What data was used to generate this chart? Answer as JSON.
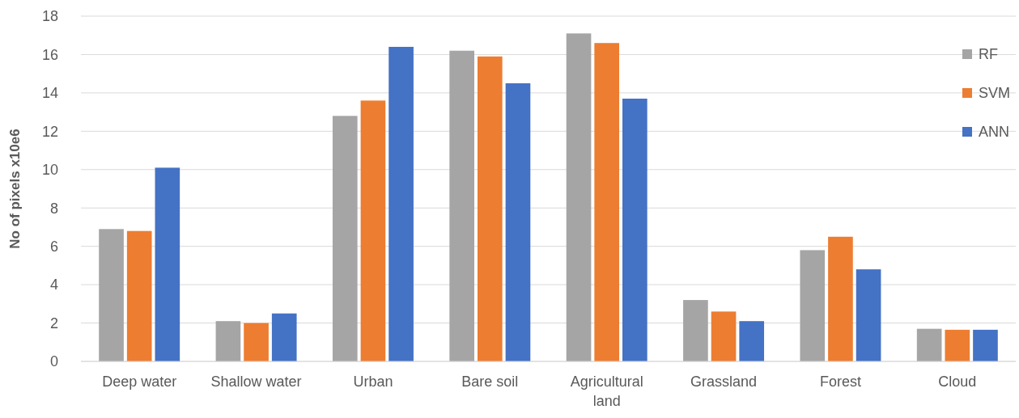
{
  "chart_data": {
    "type": "bar",
    "ylabel": "No of pixels x10e6",
    "categories": [
      "Deep water",
      "Shallow water",
      "Urban",
      "Bare soil",
      "Agricultural land",
      "Grassland",
      "Forest",
      "Cloud"
    ],
    "series": [
      {
        "name": "RF",
        "color": "#a5a5a5",
        "values": [
          6.9,
          2.1,
          12.8,
          16.2,
          17.1,
          3.2,
          5.8,
          1.7
        ]
      },
      {
        "name": "SVM",
        "color": "#ed7d31",
        "values": [
          6.8,
          2.0,
          13.6,
          15.9,
          16.6,
          2.6,
          6.5,
          1.65
        ]
      },
      {
        "name": "ANN",
        "color": "#4472c4",
        "values": [
          10.1,
          2.5,
          16.4,
          14.5,
          13.7,
          2.1,
          4.8,
          1.65
        ]
      }
    ],
    "ylim": [
      0,
      18
    ],
    "yticks": [
      0,
      2,
      4,
      6,
      8,
      10,
      12,
      14,
      16,
      18
    ],
    "grid": "y",
    "legend": "top right"
  }
}
